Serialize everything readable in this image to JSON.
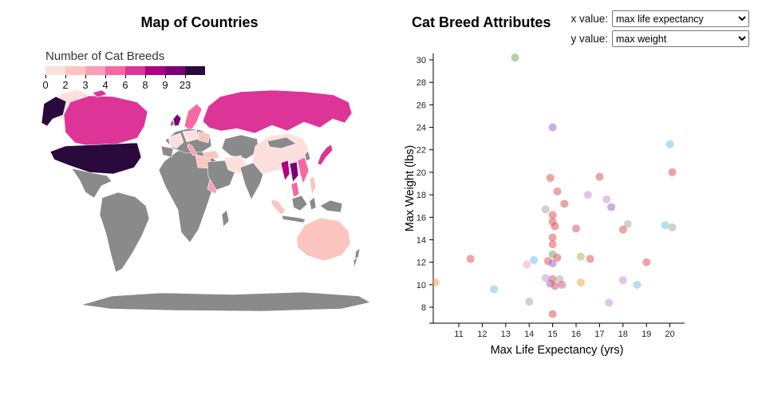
{
  "controls": {
    "x_label": "x value:",
    "x_value": "max life expectancy",
    "y_label": "y value:",
    "y_value": "max weight"
  },
  "chart_data": [
    {
      "type": "choropleth",
      "title": "Map of Countries",
      "legend": {
        "title": "Number of Cat Breeds",
        "tick_labels": [
          "0",
          "2",
          "3",
          "4",
          "6",
          "8",
          "9",
          "23"
        ],
        "segment_colors": [
          "#fde0dd",
          "#fcc5c0",
          "#fa9fb5",
          "#f768a1",
          "#dd3497",
          "#ae017e",
          "#7a0177",
          "#2a0a3d"
        ]
      },
      "no_data_color": "#8a8a8a",
      "ocean_color": "#ffffff",
      "country_colors": {
        "united-states": "#2a0a3d",
        "canada": "#dd3497",
        "greenland": "#fde0dd",
        "russia": "#dd3497",
        "scandinavia": "#f768a1",
        "united-kingdom": "#7a0177",
        "france": "#fde0dd",
        "central-europe": "#fde0dd",
        "eastern-europe": "#fcc5c0",
        "italy": "#fa9fb5",
        "turkey": "#fcc5c0",
        "egypt": "#fcc5c0",
        "east-africa": "#fa9fb5",
        "iran": "#fde0dd",
        "china": "#fde0dd",
        "japan": "#dd3497",
        "myanmar": "#ae017e",
        "thailand": "#7a0177",
        "vietnam": "#f768a1",
        "malaysia": "#f768a1",
        "philippines": "#fcc5c0",
        "sumatra": "#fcc5c0",
        "australia": "#fcc5c0"
      }
    },
    {
      "type": "scatter",
      "title": "Cat Breed Attributes",
      "xlabel": "Max Life Expectancy (yrs)",
      "ylabel": "Max Weight (lbs)",
      "x_ticks": [
        11,
        12,
        13,
        14,
        15,
        16,
        17,
        18,
        19,
        20
      ],
      "y_ticks": [
        8,
        10,
        12,
        14,
        16,
        18,
        20,
        22,
        24,
        26,
        28,
        30
      ],
      "xlim": [
        9.7,
        20.6
      ],
      "ylim": [
        7,
        31
      ],
      "point_radius": 5,
      "point_opacity": 0.55,
      "points": [
        {
          "x": 13.4,
          "y": 30.2,
          "color": "#74ab62"
        },
        {
          "x": 15.0,
          "y": 24.0,
          "color": "#9a6fc4"
        },
        {
          "x": 20.0,
          "y": 22.5,
          "color": "#72c3e8"
        },
        {
          "x": 20.1,
          "y": 20.0,
          "color": "#e0585b"
        },
        {
          "x": 17.0,
          "y": 19.6,
          "color": "#e0585b"
        },
        {
          "x": 14.9,
          "y": 19.5,
          "color": "#e0585b"
        },
        {
          "x": 15.2,
          "y": 18.3,
          "color": "#e0585b"
        },
        {
          "x": 16.5,
          "y": 18.0,
          "color": "#c995d4"
        },
        {
          "x": 17.3,
          "y": 17.6,
          "color": "#c995d4"
        },
        {
          "x": 15.5,
          "y": 17.2,
          "color": "#e0585b"
        },
        {
          "x": 14.7,
          "y": 16.7,
          "color": "#b3aaa1"
        },
        {
          "x": 15.0,
          "y": 16.2,
          "color": "#e0585b"
        },
        {
          "x": 17.5,
          "y": 16.9,
          "color": "#9a6fc4"
        },
        {
          "x": 15.1,
          "y": 15.2,
          "color": "#e0585b"
        },
        {
          "x": 16.0,
          "y": 15.0,
          "color": "#e0585b"
        },
        {
          "x": 15.0,
          "y": 15.6,
          "color": "#e0585b"
        },
        {
          "x": 19.8,
          "y": 15.3,
          "color": "#72c3e8"
        },
        {
          "x": 20.1,
          "y": 15.1,
          "color": "#b3aaa1"
        },
        {
          "x": 18.2,
          "y": 15.4,
          "color": "#b3aaa1"
        },
        {
          "x": 18.0,
          "y": 14.9,
          "color": "#e0585b"
        },
        {
          "x": 15.0,
          "y": 14.2,
          "color": "#e0585b"
        },
        {
          "x": 15.0,
          "y": 13.6,
          "color": "#e0585b"
        },
        {
          "x": 14.2,
          "y": 12.2,
          "color": "#72c3e8"
        },
        {
          "x": 11.5,
          "y": 12.3,
          "color": "#e0585b"
        },
        {
          "x": 15.0,
          "y": 12.7,
          "color": "#74ab62"
        },
        {
          "x": 15.2,
          "y": 12.4,
          "color": "#e0585b"
        },
        {
          "x": 14.8,
          "y": 12.1,
          "color": "#e0585b"
        },
        {
          "x": 16.2,
          "y": 12.5,
          "color": "#b8b85a"
        },
        {
          "x": 16.6,
          "y": 12.3,
          "color": "#e0585b"
        },
        {
          "x": 13.9,
          "y": 11.8,
          "color": "#f5a8bc"
        },
        {
          "x": 19.0,
          "y": 12.0,
          "color": "#e0585b"
        },
        {
          "x": 15.0,
          "y": 11.9,
          "color": "#9a6fc4"
        },
        {
          "x": 14.7,
          "y": 10.6,
          "color": "#c995d4"
        },
        {
          "x": 15.0,
          "y": 10.5,
          "color": "#e0585b"
        },
        {
          "x": 15.3,
          "y": 10.5,
          "color": "#b3aaa1"
        },
        {
          "x": 14.9,
          "y": 10.1,
          "color": "#9a6fc4"
        },
        {
          "x": 15.1,
          "y": 9.9,
          "color": "#e0585b"
        },
        {
          "x": 15.4,
          "y": 10.0,
          "color": "#d85aa0"
        },
        {
          "x": 16.2,
          "y": 10.2,
          "color": "#f2a254"
        },
        {
          "x": 10.0,
          "y": 10.2,
          "color": "#f2a254"
        },
        {
          "x": 12.5,
          "y": 9.6,
          "color": "#72c3e8"
        },
        {
          "x": 18.0,
          "y": 10.4,
          "color": "#c995d4"
        },
        {
          "x": 18.6,
          "y": 10.0,
          "color": "#72c3e8"
        },
        {
          "x": 14.0,
          "y": 8.5,
          "color": "#b3aaa1"
        },
        {
          "x": 17.4,
          "y": 8.4,
          "color": "#c995d4"
        },
        {
          "x": 15.0,
          "y": 7.4,
          "color": "#e0585b"
        }
      ]
    }
  ]
}
